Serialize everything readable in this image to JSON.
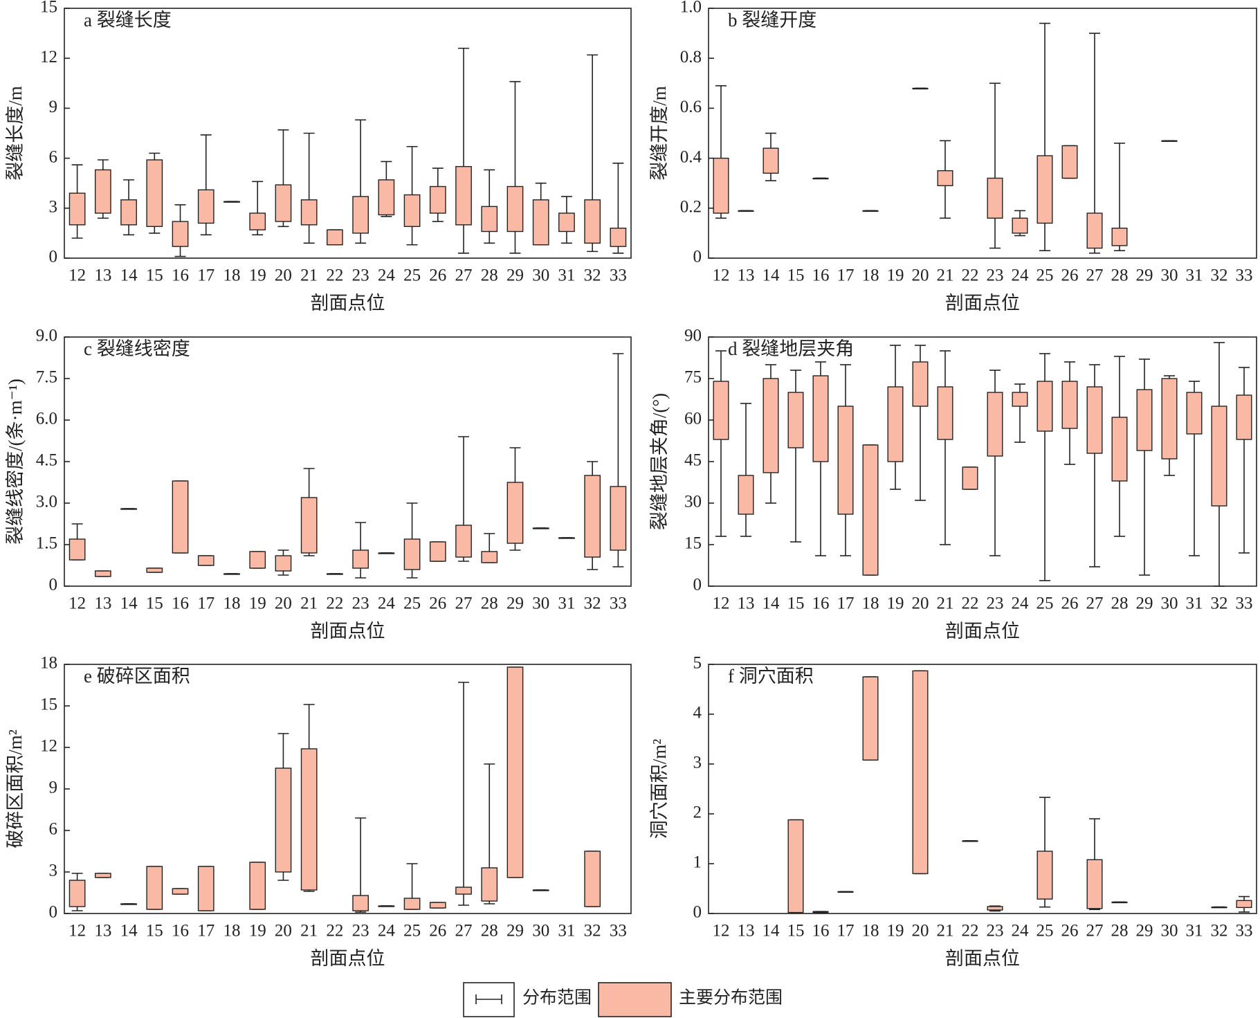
{
  "legend": [
    {
      "name": "分布范围"
    },
    {
      "name": "主要分布范围",
      "color": "#f9b9a4"
    }
  ],
  "chart_data": [
    {
      "type": "range",
      "title": "a 裂缝长度",
      "x_label": "剖面点位",
      "y_label": "裂缝长度/m",
      "categories": [
        "12",
        "13",
        "14",
        "15",
        "16",
        "17",
        "18",
        "19",
        "20",
        "21",
        "22",
        "23",
        "24",
        "25",
        "26",
        "27",
        "28",
        "29",
        "30",
        "31",
        "32",
        "33"
      ],
      "ylim": [
        0,
        15
      ],
      "yticks": [
        0,
        3,
        6,
        9,
        12,
        15
      ],
      "min": [
        1.2,
        2.4,
        1.4,
        1.5,
        0.1,
        1.4,
        3.4,
        1.4,
        1.9,
        0.9,
        0.8,
        0.9,
        2.5,
        0.8,
        2.2,
        0.3,
        0.9,
        0.3,
        0.8,
        0.9,
        0.4,
        0.3
      ],
      "max": [
        5.6,
        5.9,
        4.7,
        6.3,
        3.2,
        7.4,
        3.4,
        4.6,
        7.7,
        7.5,
        1.7,
        8.3,
        5.8,
        6.7,
        5.4,
        12.6,
        5.3,
        10.6,
        4.5,
        3.7,
        12.2,
        5.7
      ],
      "low": [
        2.0,
        2.7,
        2.0,
        1.9,
        0.7,
        2.1,
        3.4,
        1.7,
        2.2,
        2.0,
        0.8,
        1.5,
        2.6,
        1.9,
        2.7,
        2.0,
        1.6,
        1.6,
        0.8,
        1.6,
        0.9,
        0.7
      ],
      "high": [
        3.9,
        5.3,
        3.5,
        5.9,
        2.2,
        4.1,
        3.4,
        2.7,
        4.4,
        3.5,
        1.7,
        3.7,
        4.7,
        3.8,
        4.3,
        5.5,
        3.1,
        4.3,
        3.5,
        2.7,
        3.5,
        1.8
      ]
    },
    {
      "type": "range",
      "title": "b 裂缝开度",
      "x_label": "剖面点位",
      "y_label": "裂缝开度/m",
      "categories": [
        "12",
        "13",
        "14",
        "15",
        "16",
        "17",
        "18",
        "19",
        "20",
        "21",
        "22",
        "23",
        "24",
        "25",
        "26",
        "27",
        "28",
        "29",
        "30",
        "31",
        "32",
        "33"
      ],
      "ylim": [
        0,
        1
      ],
      "yticks": [
        0,
        0.2,
        0.4,
        0.6,
        0.8,
        {
          "value": 1,
          "label": "1.0"
        }
      ],
      "min": [
        0.16,
        0.19,
        0.31,
        null,
        0.32,
        null,
        0.19,
        null,
        0.68,
        0.16,
        null,
        0.04,
        0.09,
        0.03,
        0.32,
        0.02,
        0.03,
        null,
        0.47,
        null,
        null,
        null
      ],
      "max": [
        0.69,
        0.19,
        0.5,
        null,
        0.32,
        null,
        0.19,
        null,
        0.68,
        0.47,
        null,
        0.7,
        0.19,
        0.94,
        0.45,
        0.9,
        0.46,
        null,
        0.47,
        null,
        null,
        null
      ],
      "low": [
        0.18,
        0.19,
        0.34,
        null,
        0.32,
        null,
        0.19,
        null,
        0.68,
        0.29,
        null,
        0.16,
        0.1,
        0.14,
        0.32,
        0.04,
        0.05,
        null,
        0.47,
        null,
        null,
        null
      ],
      "high": [
        0.4,
        0.19,
        0.44,
        null,
        0.32,
        null,
        0.19,
        null,
        0.68,
        0.35,
        null,
        0.32,
        0.16,
        0.41,
        0.45,
        0.18,
        0.12,
        null,
        0.47,
        null,
        null,
        null
      ]
    },
    {
      "type": "range",
      "title": "c 裂缝线密度",
      "x_label": "剖面点位",
      "y_label": "裂缝线密度/(条·m⁻¹)",
      "categories": [
        "12",
        "13",
        "14",
        "15",
        "16",
        "17",
        "18",
        "19",
        "20",
        "21",
        "22",
        "23",
        "24",
        "25",
        "26",
        "27",
        "28",
        "29",
        "30",
        "31",
        "32",
        "33"
      ],
      "ylim": [
        0,
        9
      ],
      "yticks": [
        0,
        1.5,
        {
          "value": 3,
          "label": "3.0"
        },
        4.5,
        {
          "value": 6,
          "label": "6.0"
        },
        7.5,
        {
          "value": 9,
          "label": "9.0"
        }
      ],
      "min": [
        0.95,
        0.35,
        2.8,
        0.5,
        1.2,
        0.75,
        0.45,
        0.65,
        0.4,
        1.1,
        0.45,
        0.3,
        1.2,
        0.3,
        0.9,
        0.9,
        0.85,
        1.3,
        2.1,
        1.75,
        0.6,
        0.7
      ],
      "max": [
        2.25,
        0.55,
        2.8,
        0.65,
        3.8,
        1.1,
        0.45,
        1.25,
        1.3,
        4.25,
        0.45,
        2.3,
        1.2,
        3.0,
        1.6,
        5.4,
        1.9,
        5.0,
        2.1,
        1.75,
        4.5,
        8.4
      ],
      "low": [
        0.95,
        0.35,
        2.8,
        0.5,
        1.2,
        0.75,
        0.45,
        0.65,
        0.55,
        1.2,
        0.45,
        0.65,
        1.2,
        0.6,
        0.9,
        1.05,
        0.85,
        1.55,
        2.1,
        1.75,
        1.05,
        1.3
      ],
      "high": [
        1.7,
        0.55,
        2.8,
        0.65,
        3.8,
        1.1,
        0.45,
        1.25,
        1.1,
        3.2,
        0.45,
        1.3,
        1.2,
        1.7,
        1.6,
        2.2,
        1.25,
        3.75,
        2.1,
        1.75,
        4.0,
        3.6
      ]
    },
    {
      "type": "range",
      "title": "d 裂缝地层夹角",
      "x_label": "剖面点位",
      "y_label": "裂缝地层夹角/(°)",
      "categories": [
        "12",
        "13",
        "14",
        "15",
        "16",
        "17",
        "18",
        "19",
        "20",
        "21",
        "22",
        "23",
        "24",
        "25",
        "26",
        "27",
        "28",
        "29",
        "30",
        "31",
        "32",
        "33"
      ],
      "ylim": [
        0,
        90
      ],
      "yticks": [
        0,
        15,
        30,
        45,
        60,
        75,
        90
      ],
      "min": [
        18,
        18,
        30,
        16,
        11,
        11,
        4,
        35,
        31,
        15,
        35,
        11,
        52,
        2,
        44,
        7,
        18,
        4,
        40,
        11,
        0,
        12
      ],
      "max": [
        85,
        66,
        80,
        78,
        81,
        80,
        51,
        87,
        87,
        85,
        43,
        78,
        73,
        84,
        81,
        80,
        83,
        82,
        76,
        74,
        88,
        79
      ],
      "low": [
        53,
        26,
        41,
        50,
        45,
        26,
        4,
        45,
        65,
        53,
        35,
        47,
        65,
        56,
        57,
        48,
        38,
        49,
        46,
        55,
        29,
        53
      ],
      "high": [
        74,
        40,
        75,
        70,
        76,
        65,
        51,
        72,
        81,
        72,
        43,
        70,
        70,
        74,
        74,
        72,
        61,
        71,
        75,
        70,
        65,
        69
      ]
    },
    {
      "type": "range",
      "title": "e 破碎区面积",
      "x_label": "剖面点位",
      "y_label": "破碎区面积/m²",
      "categories": [
        "12",
        "13",
        "14",
        "15",
        "16",
        "17",
        "18",
        "19",
        "20",
        "21",
        "22",
        "23",
        "24",
        "25",
        "26",
        "27",
        "28",
        "29",
        "30",
        "31",
        "32",
        "33"
      ],
      "ylim": [
        0,
        18
      ],
      "yticks": [
        0,
        3,
        6,
        9,
        12,
        15,
        18
      ],
      "min": [
        0.2,
        2.6,
        0.7,
        0.3,
        1.4,
        0.2,
        null,
        0.3,
        2.4,
        1.6,
        null,
        0.1,
        0.55,
        0.3,
        0.4,
        0.6,
        0.7,
        2.6,
        1.7,
        null,
        0.5,
        null
      ],
      "max": [
        2.9,
        2.9,
        0.7,
        3.4,
        1.8,
        3.4,
        null,
        3.7,
        13.0,
        15.1,
        null,
        6.9,
        0.55,
        3.6,
        0.8,
        16.7,
        10.8,
        17.8,
        1.7,
        null,
        4.5,
        null
      ],
      "low": [
        0.5,
        2.6,
        0.7,
        0.3,
        1.4,
        0.2,
        null,
        0.3,
        3.0,
        1.7,
        null,
        0.2,
        0.55,
        0.3,
        0.4,
        1.4,
        0.9,
        2.6,
        1.7,
        null,
        0.5,
        null
      ],
      "high": [
        2.4,
        2.9,
        0.7,
        3.4,
        1.8,
        3.4,
        null,
        3.7,
        10.5,
        11.9,
        null,
        1.3,
        0.55,
        1.1,
        0.8,
        1.9,
        3.3,
        17.8,
        1.7,
        null,
        4.5,
        null
      ]
    },
    {
      "type": "range",
      "title": "f 洞穴面积",
      "x_label": "剖面点位",
      "y_label": "洞穴面积/m²",
      "categories": [
        "12",
        "13",
        "14",
        "15",
        "16",
        "17",
        "18",
        "19",
        "20",
        "21",
        "22",
        "23",
        "24",
        "25",
        "26",
        "27",
        "28",
        "29",
        "30",
        "31",
        "32",
        "33"
      ],
      "ylim": [
        0,
        5
      ],
      "yticks": [
        0,
        1,
        2,
        3,
        4,
        5
      ],
      "min": [
        null,
        null,
        null,
        0.02,
        0.02,
        0.44,
        3.08,
        null,
        0.8,
        null,
        1.46,
        0.05,
        null,
        0.13,
        null,
        0.08,
        0.23,
        null,
        null,
        null,
        0.13,
        0.03
      ],
      "max": [
        null,
        null,
        null,
        1.88,
        0.04,
        0.44,
        4.75,
        null,
        4.87,
        null,
        1.46,
        0.15,
        null,
        2.33,
        null,
        1.9,
        0.23,
        null,
        null,
        null,
        0.13,
        0.34
      ],
      "low": [
        null,
        null,
        null,
        0.02,
        0.02,
        0.44,
        3.08,
        null,
        0.8,
        null,
        1.46,
        0.07,
        null,
        0.29,
        null,
        0.1,
        0.23,
        null,
        null,
        null,
        0.13,
        0.12
      ],
      "high": [
        null,
        null,
        null,
        1.88,
        0.04,
        0.44,
        4.75,
        null,
        4.87,
        null,
        1.46,
        0.14,
        null,
        1.25,
        null,
        1.08,
        0.23,
        null,
        null,
        null,
        0.13,
        0.26
      ]
    }
  ]
}
